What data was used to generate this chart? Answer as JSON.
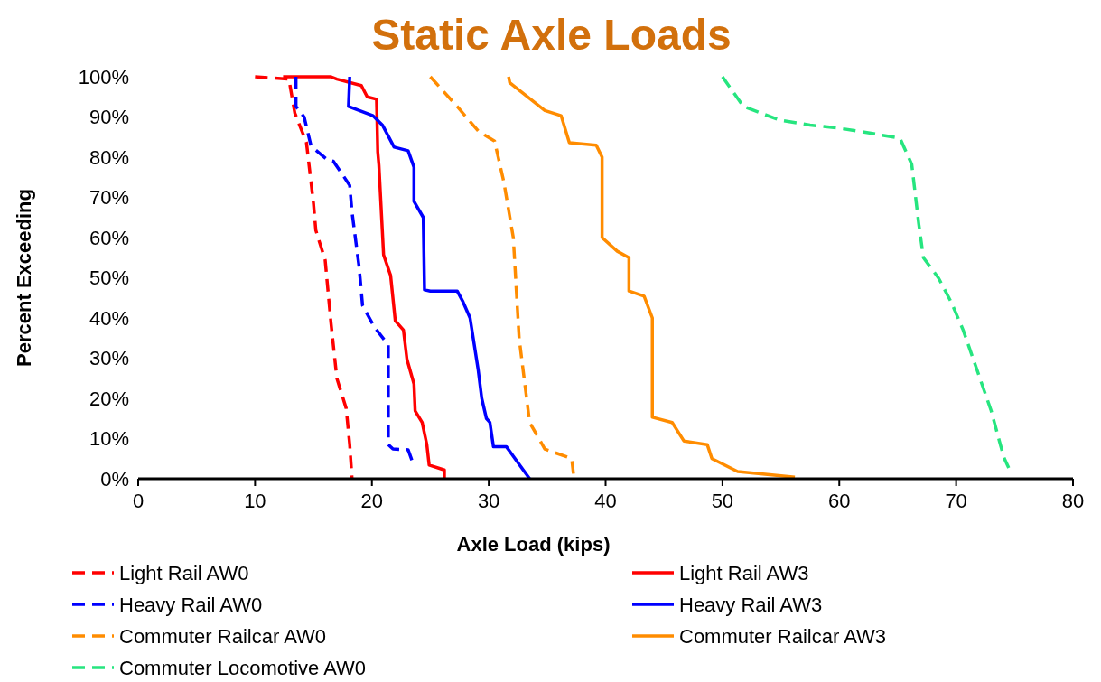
{
  "chart_data": {
    "type": "line",
    "title": "Static Axle Loads",
    "xlabel": "Axle Load (kips)",
    "ylabel": "Percent Exceeding",
    "xlim": [
      0,
      80
    ],
    "xticks": [
      0,
      10,
      20,
      30,
      40,
      50,
      60,
      70,
      80
    ],
    "ylim": [
      0,
      100
    ],
    "yticks": [
      {
        "value": 0,
        "label": "0%"
      },
      {
        "value": 10,
        "label": "10%"
      },
      {
        "value": 20,
        "label": "20%"
      },
      {
        "value": 30,
        "label": "30%"
      },
      {
        "value": 40,
        "label": "40%"
      },
      {
        "value": 50,
        "label": "50%"
      },
      {
        "value": 60,
        "label": "60%"
      },
      {
        "value": 70,
        "label": "70%"
      },
      {
        "value": 80,
        "label": "80%"
      },
      {
        "value": 90,
        "label": "90%"
      },
      {
        "value": 100,
        "label": "100%"
      }
    ],
    "grid": false,
    "legend": "bottom",
    "marker": "none",
    "series": [
      {
        "name": "Light Rail AW0",
        "color": "#ff0000",
        "line_style": "dashed",
        "x": [
          10,
          12.9,
          13.4,
          14.4,
          15,
          15.2,
          16,
          16.5,
          17,
          17.8,
          18.1,
          18.3
        ],
        "values": [
          100,
          99.4,
          91,
          83.6,
          68.5,
          61.8,
          54.4,
          38.7,
          25,
          17.5,
          8.5,
          0
        ]
      },
      {
        "name": "Light Rail AW3",
        "color": "#ff0000",
        "line_style": "solid",
        "x": [
          12.4,
          16.5,
          17,
          19.1,
          19.6,
          20.4,
          20.5,
          20.6,
          21,
          21.6,
          22,
          22.7,
          23,
          23.6,
          23.7,
          24.3,
          24.7,
          24.9,
          26.2,
          26.2
        ],
        "values": [
          100,
          100,
          99.4,
          97.8,
          95,
          94.4,
          81.3,
          78,
          55.7,
          50.6,
          39.3,
          37,
          29.7,
          23.6,
          16.9,
          14,
          8.5,
          3.4,
          2.2,
          0
        ]
      },
      {
        "name": "Heavy Rail AW0",
        "color": "#0000ff",
        "line_style": "dashed",
        "x": [
          13.5,
          13.5,
          14.2,
          14.8,
          16.2,
          16.7,
          18.1,
          18.3,
          18.9,
          19.2,
          20.2,
          21.4,
          21.4,
          21.8,
          23.1,
          23.5
        ],
        "values": [
          100,
          92.6,
          90,
          82.7,
          79.3,
          79,
          73,
          66.3,
          52.8,
          43.1,
          37.8,
          33.3,
          8.5,
          7.4,
          7.2,
          4
        ]
      },
      {
        "name": "Heavy Rail AW3",
        "color": "#0000ff",
        "line_style": "solid",
        "x": [
          18.1,
          18,
          20.1,
          20.9,
          21.9,
          23.1,
          23.6,
          23.6,
          24.4,
          24.5,
          25,
          27.3,
          27.8,
          28.4,
          29.1,
          29.4,
          29.8,
          30.1,
          30.4,
          31.5,
          32,
          33.5
        ],
        "values": [
          100,
          92.6,
          90.3,
          88,
          82.5,
          81.6,
          77.5,
          69,
          65,
          47,
          46.7,
          46.7,
          44,
          40,
          27,
          20,
          15,
          14,
          8,
          8,
          6,
          0
        ]
      },
      {
        "name": "Commuter Railcar AW0",
        "color": "#ff8c00",
        "line_style": "dashed",
        "x": [
          25,
          27.3,
          29.1,
          30.5,
          31.3,
          32.1,
          32.6,
          33.5,
          34.8,
          37.1,
          37.3
        ],
        "values": [
          100,
          92.6,
          86.5,
          84,
          73.7,
          60,
          35,
          14,
          7.4,
          5,
          0
        ]
      },
      {
        "name": "Commuter Railcar AW3",
        "color": "#ff8c00",
        "line_style": "solid",
        "x": [
          31.7,
          31.8,
          34.8,
          36.2,
          36.9,
          39.2,
          39.7,
          39.7,
          41,
          42,
          42,
          43.3,
          44,
          44,
          45.7,
          46.7,
          48.7,
          49.1,
          51.3,
          56.2
        ],
        "values": [
          100,
          98.5,
          91.6,
          90.3,
          83.6,
          83,
          80,
          60,
          56.6,
          55,
          46.7,
          45.4,
          40,
          15.3,
          14,
          9.4,
          8.5,
          5,
          1.8,
          0.4
        ]
      },
      {
        "name": "Commuter Locomotive AW0",
        "color": "#26e57f",
        "line_style": "dashed",
        "x": [
          50,
          51.8,
          54.9,
          57.5,
          60,
          62.6,
          65.2,
          66.2,
          66.8,
          67.2,
          68.5,
          69.6,
          70.6,
          71.4,
          72.2,
          73,
          73.7,
          74.1,
          74.5
        ],
        "values": [
          100,
          92.6,
          89.2,
          88,
          87.2,
          86,
          84.7,
          78.2,
          63.4,
          55,
          49.9,
          43.8,
          37,
          30.3,
          23.6,
          16.9,
          9.4,
          5.2,
          2.7
        ]
      }
    ]
  }
}
